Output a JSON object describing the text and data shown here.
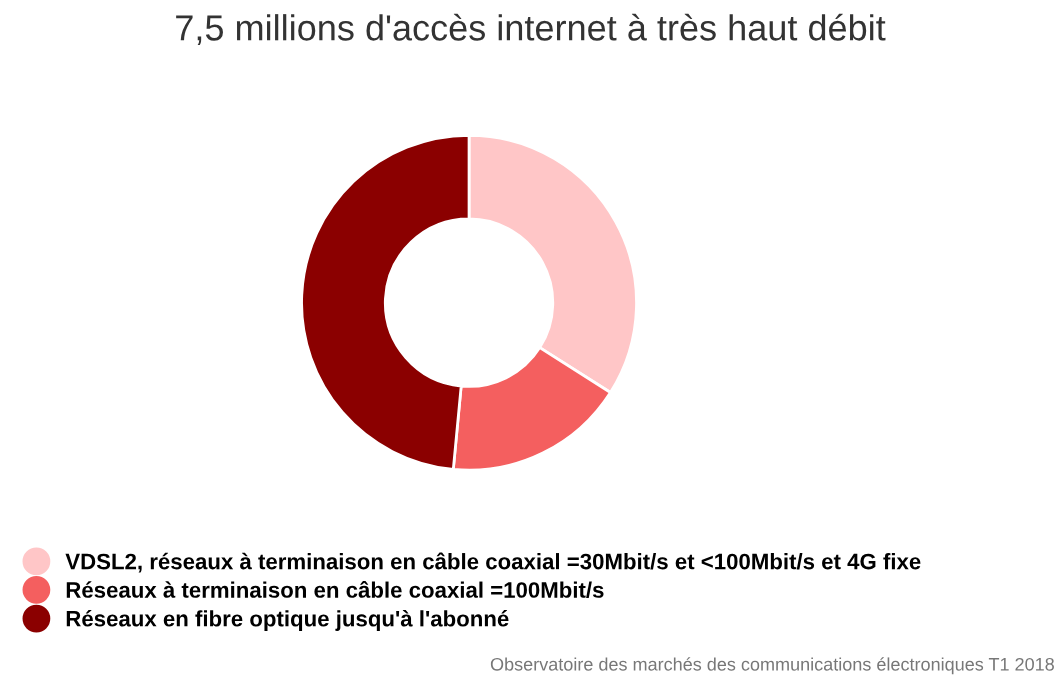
{
  "chart_data": {
    "type": "donut",
    "title": "7,5 millions d'accès internet à très haut débit",
    "categories": [
      "VDSL2, réseaux à terminaison en câble coaxial =30Mbit/s et <100Mbit/s et 4G fixe",
      "Réseaux à terminaison en câble coaxial =100Mbit/s",
      "Réseaux en fibre optique jusqu'à l'abonné"
    ],
    "values": [
      34,
      17.5,
      48.5
    ],
    "colors": [
      "#ffc6c7",
      "#f45f5f",
      "#8b0000"
    ],
    "legend": "bottom",
    "annotations": [
      "Observatoire des marchés des communications électroniques T1 2018"
    ]
  }
}
